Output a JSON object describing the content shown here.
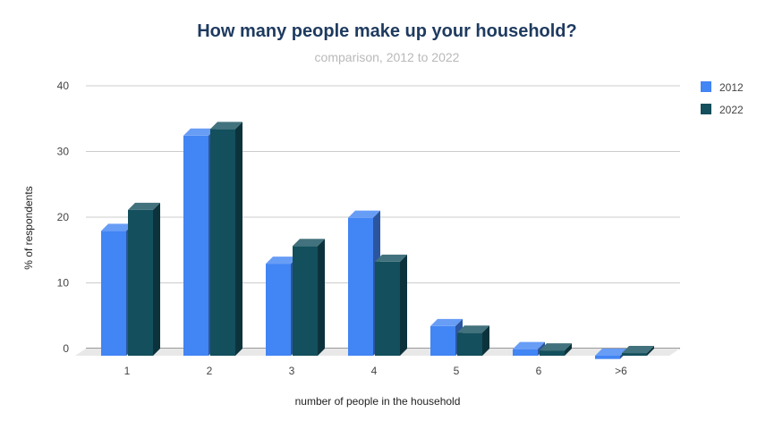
{
  "chart_data": {
    "type": "bar",
    "title": "How many people make up your household?",
    "subtitle": "comparison, 2012 to 2022",
    "xlabel": "number of people in the household",
    "ylabel": "% of respondents",
    "categories": [
      "1",
      "2",
      "3",
      "4",
      "5",
      "6",
      ">6"
    ],
    "series": [
      {
        "name": "2012",
        "color": "#4285f4",
        "values": [
          19.0,
          33.5,
          14.0,
          21.0,
          4.5,
          1.0,
          -0.5
        ]
      },
      {
        "name": "2022",
        "color": "#134f5c",
        "values": [
          22.2,
          34.5,
          16.7,
          14.3,
          3.5,
          0.8,
          0.4
        ]
      }
    ],
    "ylim": [
      0,
      40
    ],
    "yticks": [
      0,
      10,
      20,
      30,
      40
    ],
    "grid": true,
    "legend_position": "right",
    "style": "3d"
  }
}
